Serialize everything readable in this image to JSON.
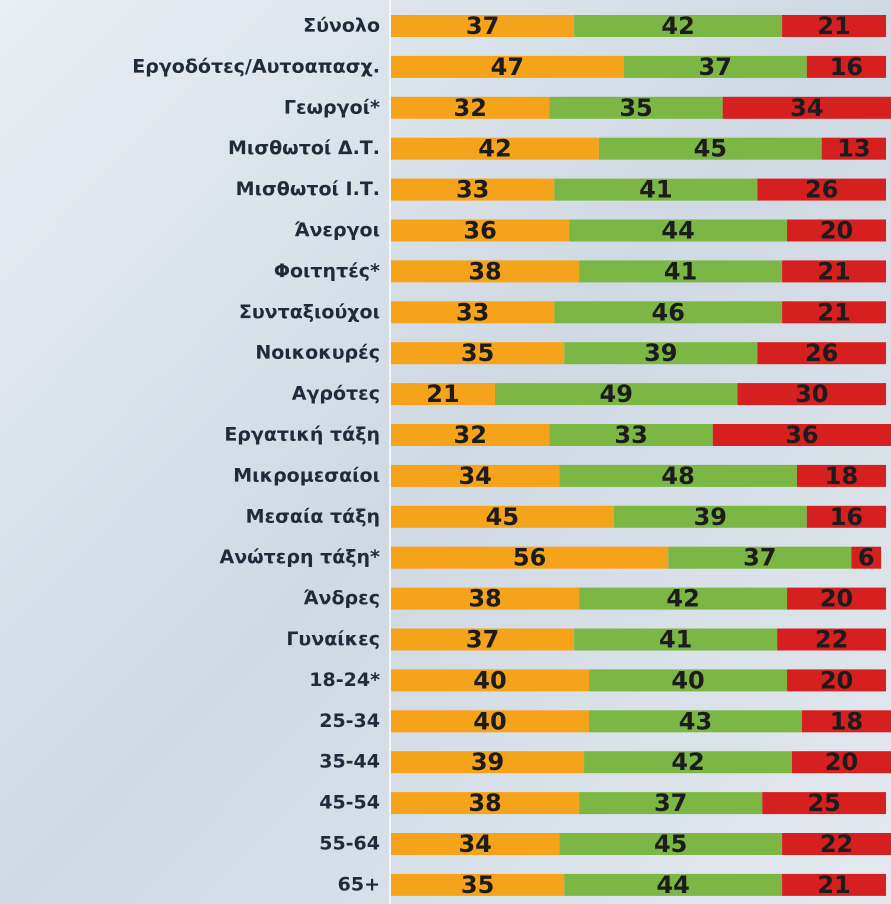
{
  "chart_data": {
    "type": "stacked-bar",
    "categories": [
      "Σύνολο",
      "Εργοδότες/Αυτοαπασχ.",
      "Γεωργοί*",
      "Μισθωτοί Δ.Τ.",
      "Μισθωτοί Ι.Τ.",
      "Άνεργοι",
      "Φοιτητές*",
      "Συνταξιούχοι",
      "Νοικοκυρές",
      "Αγρότες",
      "Εργατική τάξη",
      "Μικρομεσαίοι",
      "Μεσαία τάξη",
      "Ανώτερη τάξη*",
      "Άνδρες",
      "Γυναίκες",
      "18-24*",
      "25-34",
      "35-44",
      "45-54",
      "55-64",
      "65+"
    ],
    "series": [
      {
        "color": "#f5a31a",
        "values": [
          37,
          47,
          32,
          42,
          33,
          36,
          38,
          33,
          35,
          21,
          32,
          34,
          45,
          56,
          38,
          37,
          40,
          40,
          39,
          38,
          34,
          35
        ]
      },
      {
        "color": "#7cb644",
        "values": [
          42,
          37,
          35,
          45,
          41,
          44,
          41,
          46,
          39,
          49,
          33,
          48,
          39,
          37,
          42,
          41,
          40,
          43,
          42,
          37,
          45,
          44
        ]
      },
      {
        "color": "#d6201f",
        "values": [
          21,
          16,
          34,
          13,
          26,
          20,
          21,
          21,
          26,
          30,
          36,
          18,
          16,
          6,
          20,
          22,
          20,
          18,
          20,
          25,
          22,
          21
        ]
      }
    ]
  }
}
